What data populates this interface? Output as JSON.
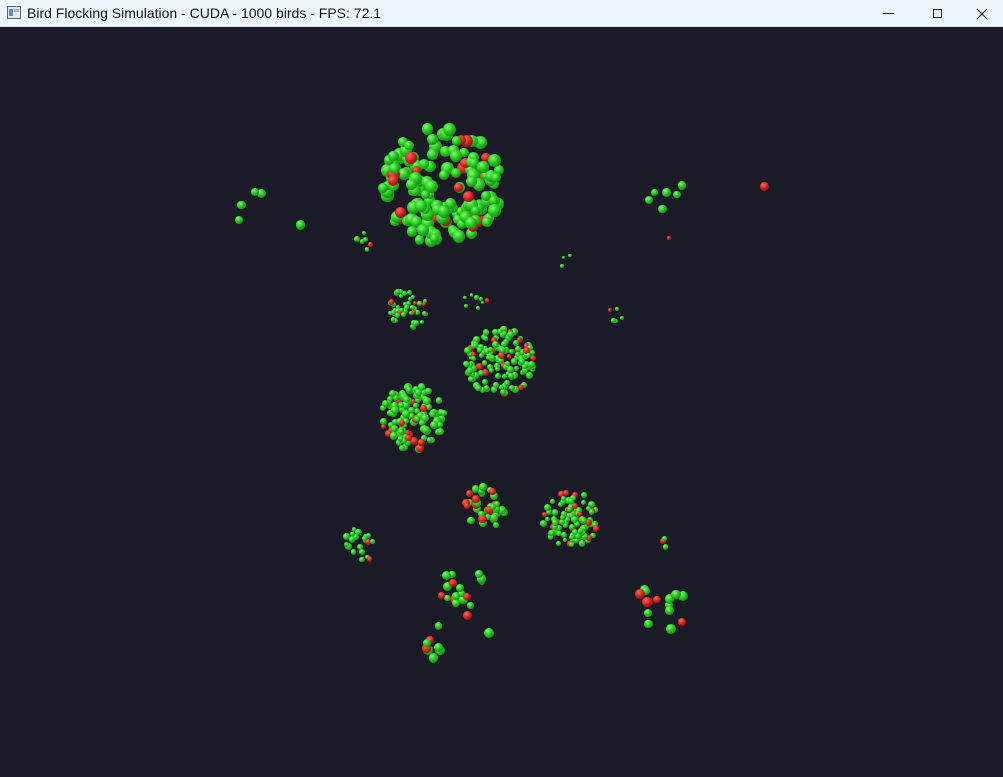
{
  "window": {
    "title": "Bird Flocking Simulation - CUDA - 1000 birds - FPS: 72.1",
    "controls": {
      "minimize_icon": "minimize-icon",
      "maximize_icon": "maximize-icon",
      "close_icon": "close-icon"
    },
    "app_icon": "app-window-icon"
  },
  "scene": {
    "background_color": "#1b1a27",
    "bird_colors": {
      "green": "#23c21c",
      "red": "#c91c17"
    },
    "flock_count": 19
  }
}
